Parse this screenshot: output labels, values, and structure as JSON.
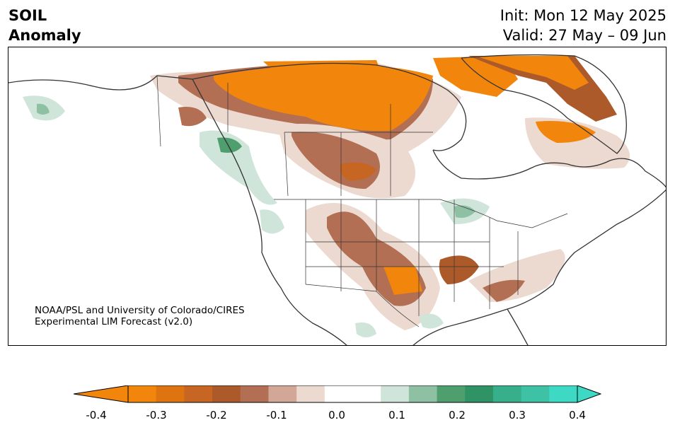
{
  "header": {
    "title_line1": "SOIL",
    "title_line2": "Anomaly",
    "init_line": "Init: Mon 12 May 2025",
    "valid_line": "Valid: 27 May – 09 Jun"
  },
  "credit": {
    "line1": "NOAA/PSL and University of Colorado/CIRES",
    "line2": "Experimental LIM Forecast (v2.0)"
  },
  "colorbar": {
    "tick_labels": [
      "-0.4",
      "-0.3",
      "-0.2",
      "-0.1",
      "0.0",
      "0.1",
      "0.2",
      "0.3",
      "0.4"
    ],
    "bins": [
      {
        "color": "#f2850b"
      },
      {
        "color": "#dd7410"
      },
      {
        "color": "#c76522"
      },
      {
        "color": "#ad5a2a"
      },
      {
        "color": "#b26f54"
      },
      {
        "color": "#d3a795"
      },
      {
        "color": "#ecd9cf"
      },
      {
        "color": "#ffffff"
      },
      {
        "color": "#ffffff"
      },
      {
        "color": "#cfe5d9"
      },
      {
        "color": "#8ec0a4"
      },
      {
        "color": "#4f9e6e"
      },
      {
        "color": "#2f9366"
      },
      {
        "color": "#36af8a"
      },
      {
        "color": "#3dc2a6"
      },
      {
        "color": "#3ed9c5"
      }
    ],
    "under_color": "#f2850b",
    "over_color": "#3ed9c5"
  },
  "map": {
    "region": "North America",
    "land_color": "#ffffff",
    "outline_color": "#333333"
  }
}
